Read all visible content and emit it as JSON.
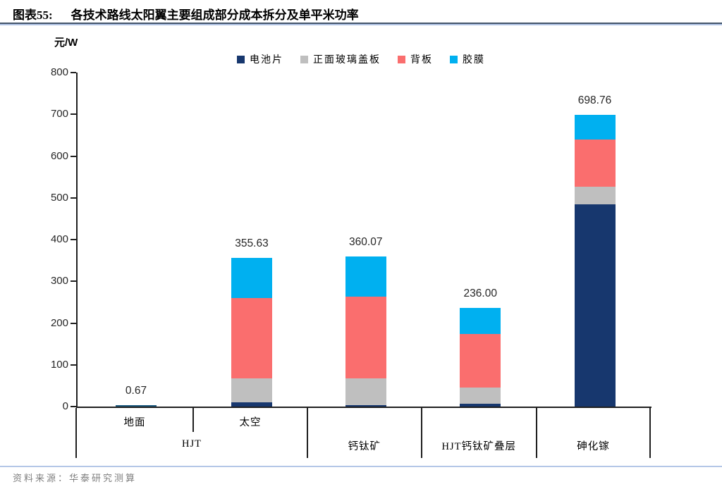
{
  "header": {
    "tag": "图表55:",
    "title": "各技术路线太阳翼主要组成部分成本拆分及单平米功率"
  },
  "y_axis": {
    "unit": "元/W"
  },
  "footer": {
    "source_label": "资料来源：",
    "source_text": "华泰研究测算"
  },
  "chart_data": {
    "type": "bar",
    "stacked": true,
    "title": "各技术路线太阳翼主要组成部分成本拆分及单平米功率",
    "ylabel": "元/W",
    "categories": [
      "地面",
      "太空",
      "钙钛矿",
      "HJT钙钛矿叠层",
      "砷化镓"
    ],
    "category_groups": [
      {
        "label": "HJT",
        "categories": [
          "地面",
          "太空"
        ]
      },
      {
        "label": "钙钛矿",
        "categories": [
          "钙钛矿"
        ]
      },
      {
        "label": "HJT钙钛矿叠层",
        "categories": [
          "HJT钙钛矿叠层"
        ]
      },
      {
        "label": "砷化镓",
        "categories": [
          "砷化镓"
        ]
      }
    ],
    "series": [
      {
        "name": "电池片",
        "color": "#17376e",
        "values": [
          0.5,
          10,
          3,
          7,
          485
        ]
      },
      {
        "name": "正面玻璃盖板",
        "color": "#bfbfbf",
        "values": [
          0.05,
          58,
          64,
          39,
          42
        ]
      },
      {
        "name": "背板",
        "color": "#fa6e6e",
        "values": [
          0.07,
          192.63,
          196.07,
          128,
          112.76
        ]
      },
      {
        "name": "胶膜",
        "color": "#00b0f0",
        "values": [
          0.05,
          95,
          97,
          62,
          59
        ]
      }
    ],
    "totals": [
      0.67,
      355.63,
      360.07,
      236.0,
      698.76
    ],
    "total_labels": [
      "0.67",
      "355.63",
      "360.07",
      "236.00",
      "698.76"
    ],
    "ylim": [
      0,
      800
    ],
    "ytick_step": 100,
    "ytick_labels": [
      "0",
      "100",
      "200",
      "300",
      "400",
      "500",
      "600",
      "700",
      "800"
    ],
    "grid": false,
    "legend_position": "top",
    "tiny_bar_color": "#1d5b80"
  }
}
